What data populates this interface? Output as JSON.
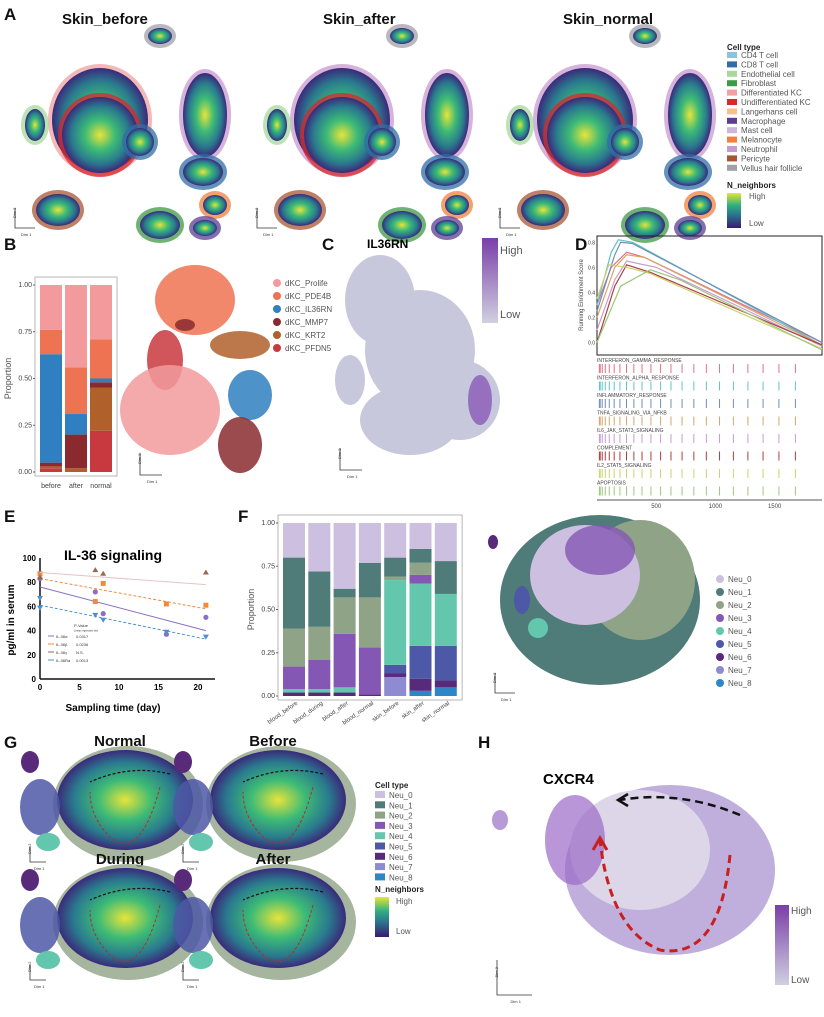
{
  "panels": {
    "A": {
      "label": "A",
      "titles": [
        "Skin_before",
        "Skin_after",
        "Skin_normal"
      ],
      "legend_title": "Cell type",
      "cell_types": [
        {
          "name": "CD4 T cell",
          "color": "#8ec3de"
        },
        {
          "name": "CD8 T cell",
          "color": "#2f6fa7"
        },
        {
          "name": "Endothelial cell",
          "color": "#a6d99a"
        },
        {
          "name": "Fibroblast",
          "color": "#3f9a45"
        },
        {
          "name": "Differentiated KC",
          "color": "#f2a0a2"
        },
        {
          "name": "Undifferentiated KC",
          "color": "#d8282b"
        },
        {
          "name": "Langerhans cell",
          "color": "#f5c08a"
        },
        {
          "name": "Macrophage",
          "color": "#5b3e94"
        },
        {
          "name": "Mast cell",
          "color": "#cdb4da"
        },
        {
          "name": "Melanocyte",
          "color": "#f0813c"
        },
        {
          "name": "Neutrophil",
          "color": "#c99ad0"
        },
        {
          "name": "Pericyte",
          "color": "#a85533"
        },
        {
          "name": "Vellus hair follicle",
          "color": "#a0a0a8"
        }
      ],
      "density_title": "N_neighbors",
      "high": "High",
      "low": "Low"
    },
    "axes": {
      "dim1": "Dim 1",
      "dim2": "Dim 2"
    },
    "B": {
      "label": "B",
      "ylabel": "Proportion",
      "legend": [
        {
          "name": "dKC_Prolife",
          "color": "#f29a9c"
        },
        {
          "name": "dKC_PDE4B",
          "color": "#ee7352"
        },
        {
          "name": "dKC_IL36RN",
          "color": "#2f7fc1"
        },
        {
          "name": "dKC_MMP7",
          "color": "#8a2a2e"
        },
        {
          "name": "dKC_KRT2",
          "color": "#b0602a"
        },
        {
          "name": "dKC_PFDN5",
          "color": "#c8383f"
        }
      ]
    },
    "C": {
      "label": "C",
      "title": "IL36RN",
      "high": "High",
      "low": "Low"
    },
    "D": {
      "label": "D",
      "ylabel": "Running Enrichment Score"
    },
    "E": {
      "label": "E",
      "pvalue_title": "P-Value",
      "pvalue_sub": "Linear regression test"
    },
    "F": {
      "label": "F",
      "ylabel": "Proportion"
    },
    "G": {
      "label": "G",
      "titles": [
        "Normal",
        "Before",
        "During",
        "After"
      ],
      "legend_title": "Cell type",
      "density_title": "N_neighbors",
      "high": "High",
      "low": "Low"
    },
    "H": {
      "label": "H",
      "title": "CXCR4",
      "high": "High",
      "low": "Low"
    },
    "neu_types": [
      {
        "name": "Neu_0",
        "color": "#cdbfe0"
      },
      {
        "name": "Neu_1",
        "color": "#4f7b78"
      },
      {
        "name": "Neu_2",
        "color": "#8fa386"
      },
      {
        "name": "Neu_3",
        "color": "#8457b5"
      },
      {
        "name": "Neu_4",
        "color": "#63c7ad"
      },
      {
        "name": "Neu_5",
        "color": "#4d58a6"
      },
      {
        "name": "Neu_6",
        "color": "#5a2a7a"
      },
      {
        "name": "Neu_7",
        "color": "#8d8bd2"
      },
      {
        "name": "Neu_8",
        "color": "#2f86c6"
      }
    ]
  },
  "chart_data": [
    {
      "id": "B",
      "type": "bar",
      "stacked": true,
      "categories": [
        "before",
        "after",
        "normal"
      ],
      "yticks": [
        "0.00",
        "0.25",
        "0.50",
        "0.75",
        "1.00"
      ],
      "ylim": [
        0,
        1
      ],
      "ylabel": "Proportion",
      "series": [
        {
          "name": "dKC_PFDN5",
          "values": [
            0.02,
            0.0,
            0.22
          ]
        },
        {
          "name": "dKC_KRT2",
          "values": [
            0.01,
            0.02,
            0.23
          ]
        },
        {
          "name": "dKC_MMP7",
          "values": [
            0.02,
            0.18,
            0.03
          ]
        },
        {
          "name": "dKC_IL36RN",
          "values": [
            0.58,
            0.11,
            0.02
          ]
        },
        {
          "name": "dKC_PDE4B",
          "values": [
            0.13,
            0.25,
            0.21
          ]
        },
        {
          "name": "dKC_Prolife",
          "values": [
            0.24,
            0.44,
            0.29
          ]
        }
      ]
    },
    {
      "id": "D",
      "type": "line",
      "ylabel": "Running Enrichment Score",
      "xticks": [
        "500",
        "1000",
        "1500"
      ],
      "xlim": [
        0,
        1900
      ],
      "yticks": [
        "0.0",
        "0.2",
        "0.4",
        "0.6",
        "0.8"
      ],
      "ylim": [
        -0.1,
        0.85
      ],
      "series": [
        {
          "name": "INTERFERON_GAMMA_RESPONSE",
          "color": "#e0708a",
          "points": [
            [
              0,
              0.3
            ],
            [
              120,
              0.6
            ],
            [
              250,
              0.72
            ],
            [
              400,
              0.68
            ],
            [
              1900,
              0.0
            ]
          ]
        },
        {
          "name": "INTERFERON_ALPHA_RESPONSE",
          "color": "#5fc2c8",
          "points": [
            [
              0,
              0.3
            ],
            [
              120,
              0.72
            ],
            [
              180,
              0.82
            ],
            [
              300,
              0.8
            ],
            [
              1900,
              -0.02
            ]
          ]
        },
        {
          "name": "INFLAMMATORY_RESPONSE",
          "color": "#6f8fb8",
          "points": [
            [
              0,
              0.25
            ],
            [
              150,
              0.7
            ],
            [
              200,
              0.8
            ],
            [
              300,
              0.79
            ],
            [
              1900,
              0.0
            ]
          ]
        },
        {
          "name": "TNFA_SIGNALING_VIA_NFKB",
          "color": "#d8a46a",
          "points": [
            [
              0,
              0.2
            ],
            [
              150,
              0.6
            ],
            [
              250,
              0.7
            ],
            [
              400,
              0.68
            ],
            [
              1900,
              -0.02
            ]
          ]
        },
        {
          "name": "IL6_JAK_STAT3_SIGNALING",
          "color": "#c79ad6",
          "points": [
            [
              0,
              0.1
            ],
            [
              150,
              0.5
            ],
            [
              250,
              0.65
            ],
            [
              500,
              0.6
            ],
            [
              1900,
              -0.03
            ]
          ]
        },
        {
          "name": "COMPLEMENT",
          "color": "#a8403e",
          "points": [
            [
              0,
              0.0
            ],
            [
              150,
              0.45
            ],
            [
              250,
              0.62
            ],
            [
              450,
              0.56
            ],
            [
              1900,
              -0.02
            ]
          ]
        },
        {
          "name": "IL2_STAT5_SIGNALING",
          "color": "#cfd070",
          "points": [
            [
              0,
              0.35
            ],
            [
              100,
              0.62
            ],
            [
              250,
              0.6
            ],
            [
              450,
              0.55
            ],
            [
              1900,
              -0.05
            ]
          ]
        },
        {
          "name": "APOPTOSIS",
          "color": "#9cc87a",
          "points": [
            [
              0,
              0.0
            ],
            [
              200,
              0.45
            ],
            [
              450,
              0.58
            ],
            [
              700,
              0.5
            ],
            [
              1900,
              -0.06
            ]
          ]
        }
      ]
    },
    {
      "id": "E",
      "type": "scatter",
      "title": "IL-36 signaling",
      "xlabel": "Sampling time (day)",
      "ylabel": "pg/ml in serum",
      "xticks": [
        "0",
        "5",
        "10",
        "15",
        "20"
      ],
      "yticks": [
        "0",
        "20",
        "40",
        "60",
        "80",
        "100"
      ],
      "xlim": [
        0,
        22
      ],
      "ylim": [
        0,
        100
      ],
      "series": [
        {
          "name": "IL-36α",
          "p": "0.0317",
          "color": "#8a6fc4",
          "marker": "circle",
          "line": [
            [
              0,
              76
            ],
            [
              21,
              40
            ]
          ],
          "points": [
            [
              0,
              83
            ],
            [
              7,
              72
            ],
            [
              8,
              54
            ],
            [
              16,
              37
            ],
            [
              21,
              51
            ]
          ]
        },
        {
          "name": "IL-36β",
          "p": "0.0236",
          "color": "#f08a3c",
          "marker": "square",
          "dashed": true,
          "line": [
            [
              0,
              83
            ],
            [
              21,
              58
            ]
          ],
          "points": [
            [
              0,
              87
            ],
            [
              7,
              64
            ],
            [
              8,
              79
            ],
            [
              16,
              62
            ],
            [
              21,
              61
            ]
          ]
        },
        {
          "name": "IL-36γ",
          "p": "N.S.",
          "color": "#9a6a50",
          "marker": "triangle",
          "linecolor": "#e8c4c4",
          "line": [
            [
              0,
              88
            ],
            [
              21,
              78
            ]
          ],
          "points": [
            [
              0,
              84
            ],
            [
              7,
              90
            ],
            [
              8,
              87
            ],
            [
              21,
              88
            ]
          ]
        },
        {
          "name": "IL-36Ra",
          "p": "0.0013",
          "color": "#4a90d0",
          "marker": "triangle-down",
          "dashed": true,
          "line": [
            [
              0,
              61
            ],
            [
              21,
              33
            ]
          ],
          "points": [
            [
              0,
              59
            ],
            [
              0,
              67
            ],
            [
              7,
              53
            ],
            [
              8,
              49
            ],
            [
              16,
              39
            ],
            [
              21,
              35
            ]
          ]
        }
      ]
    },
    {
      "id": "F",
      "type": "bar",
      "stacked": true,
      "ylabel": "Proportion",
      "categories": [
        "blood_before",
        "blood_during",
        "blood_after",
        "blood_normal",
        "skin_before",
        "skin_after",
        "skin_normal"
      ],
      "yticks": [
        "0.00",
        "0.25",
        "0.50",
        "0.75",
        "1.00"
      ],
      "ylim": [
        0,
        1
      ],
      "series": [
        {
          "name": "Neu_8",
          "values": [
            0.0,
            0.0,
            0.0,
            0.0,
            0.0,
            0.03,
            0.05
          ]
        },
        {
          "name": "Neu_7",
          "values": [
            0.0,
            0.0,
            0.0,
            0.0,
            0.11,
            0.0,
            0.0
          ]
        },
        {
          "name": "Neu_6",
          "values": [
            0.02,
            0.02,
            0.02,
            0.01,
            0.02,
            0.07,
            0.04
          ]
        },
        {
          "name": "Neu_5",
          "values": [
            0.0,
            0.0,
            0.0,
            0.0,
            0.05,
            0.19,
            0.2
          ]
        },
        {
          "name": "Neu_4",
          "values": [
            0.02,
            0.02,
            0.03,
            0.0,
            0.49,
            0.36,
            0.3
          ]
        },
        {
          "name": "Neu_3",
          "values": [
            0.13,
            0.17,
            0.31,
            0.27,
            0.0,
            0.05,
            0.0
          ]
        },
        {
          "name": "Neu_2",
          "values": [
            0.22,
            0.19,
            0.21,
            0.29,
            0.02,
            0.07,
            0.0
          ]
        },
        {
          "name": "Neu_1",
          "values": [
            0.41,
            0.32,
            0.05,
            0.2,
            0.11,
            0.08,
            0.19
          ]
        },
        {
          "name": "Neu_0",
          "values": [
            0.2,
            0.28,
            0.38,
            0.23,
            0.2,
            0.15,
            0.22
          ]
        }
      ]
    }
  ]
}
